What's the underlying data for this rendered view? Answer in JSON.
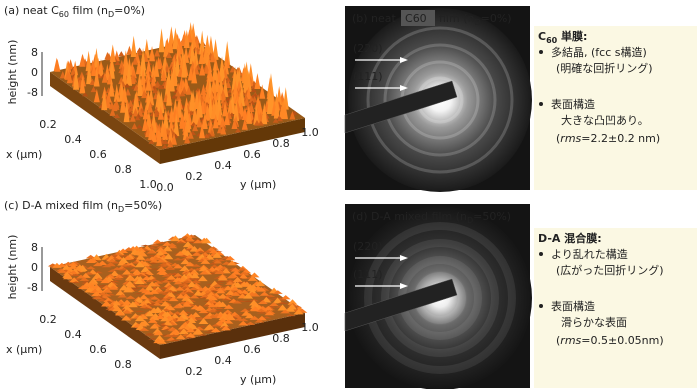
{
  "surfaces": [
    {
      "label": {
        "prefix": "(a) neat C",
        "sub": "60",
        "mid": " film (n",
        "sub2": "D",
        "end": "=0%)"
      },
      "height_label": "height (nm)",
      "height_ticks": [
        "8",
        "0",
        "-8"
      ],
      "x_label": "x (µm)",
      "x_ticks": [
        "0.2",
        "0.4",
        "0.6",
        "0.8",
        "1.0"
      ],
      "y_label": "y (µm)",
      "y_ticks": [
        "0.0",
        "0.2",
        "0.4",
        "0.6",
        "0.8",
        "1.0"
      ]
    },
    {
      "label": {
        "prefix": "(c) D-A mixed film (n",
        "sub": "D",
        "end": "=50%)"
      },
      "height_label": "height (nm)",
      "height_ticks": [
        "8",
        "0",
        "-8"
      ],
      "x_label": "x (µm)",
      "x_ticks": [
        "0.2",
        "0.4",
        "0.6",
        "0.8"
      ],
      "y_label": "y (µm)",
      "y_ticks": [
        "0.2",
        "0.4",
        "0.6",
        "0.8",
        "1.0"
      ]
    }
  ],
  "diffraction": [
    {
      "label": {
        "prefix": "(b) neat",
        "chip": "C",
        "chip_sub": "60",
        "suffix": "film (n",
        "sub": "D",
        "end": "=0%)"
      },
      "rings": [
        "(220)",
        "(111)"
      ]
    },
    {
      "label": {
        "prefix": "(d) D-A mixed film (n",
        "sub": "D",
        "end": "=50%)"
      },
      "rings": [
        "(220)",
        "(111)"
      ]
    }
  ],
  "notes": [
    {
      "title": {
        "main": "C",
        "sub": "60",
        "end": " 単膜:"
      },
      "lines": [
        {
          "text": "多結晶, (fcc s構造)",
          "bullet": true
        },
        {
          "text": "(明確な回折リング)"
        },
        {
          "text": "表面構造",
          "bullet": true
        },
        {
          "text": "大きな凸凹あり。"
        },
        {
          "pre": "(",
          "em": "rms",
          "post": "=2.2±0.2 nm)"
        }
      ]
    },
    {
      "title": {
        "main": "D-A 混合膜:"
      },
      "lines": [
        {
          "text": "より乱れた構造",
          "bullet": true
        },
        {
          "text": "(広がった回折リング)"
        },
        {
          "text": "表面構造",
          "bullet": true
        },
        {
          "text": "滑らかな表面"
        },
        {
          "pre": "(",
          "em": "rms",
          "post": "=0.5±0.05nm)"
        }
      ]
    }
  ]
}
